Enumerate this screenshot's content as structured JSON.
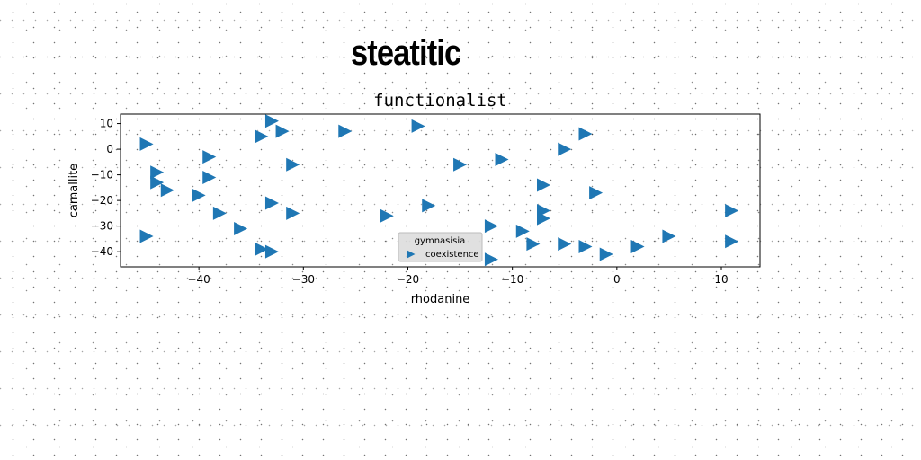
{
  "page": {
    "super_title": "steatitic"
  },
  "chart_data": {
    "type": "scatter",
    "title": "functionalist",
    "xlabel": "rhodanine",
    "ylabel": "carnallite",
    "xlim": [
      -47.5,
      13.7
    ],
    "ylim": [
      -45.9,
      13.7
    ],
    "xticks": [
      -40,
      -30,
      -20,
      -10,
      0,
      10
    ],
    "yticks": [
      -40,
      -30,
      -20,
      -10,
      0,
      10
    ],
    "grid": false,
    "legend": {
      "title": "gymnasisia",
      "placement": "lower-center"
    },
    "marker": "triangle-right",
    "series": [
      {
        "name": "coexistence",
        "color": "#1f77b4",
        "points": [
          [
            -33,
            11
          ],
          [
            -19,
            9
          ],
          [
            -26,
            7
          ],
          [
            -32,
            7
          ],
          [
            -34,
            5
          ],
          [
            -3,
            6
          ],
          [
            -45,
            2
          ],
          [
            -5,
            0
          ],
          [
            -39,
            -3
          ],
          [
            -11,
            -4
          ],
          [
            -31,
            -6
          ],
          [
            -15,
            -6
          ],
          [
            -44,
            -9
          ],
          [
            -39,
            -11
          ],
          [
            -44,
            -13
          ],
          [
            -7,
            -14
          ],
          [
            -43,
            -16
          ],
          [
            -2,
            -17
          ],
          [
            -40,
            -18
          ],
          [
            -33,
            -21
          ],
          [
            -18,
            -22
          ],
          [
            -7,
            -24
          ],
          [
            11,
            -24
          ],
          [
            -38,
            -25
          ],
          [
            -31,
            -25
          ],
          [
            -22,
            -26
          ],
          [
            -7,
            -27
          ],
          [
            -12,
            -30
          ],
          [
            -36,
            -31
          ],
          [
            -9,
            -32
          ],
          [
            -45,
            -34
          ],
          [
            5,
            -34
          ],
          [
            11,
            -36
          ],
          [
            -8,
            -37
          ],
          [
            -5,
            -37
          ],
          [
            -3,
            -38
          ],
          [
            2,
            -38
          ],
          [
            -34,
            -39
          ],
          [
            -33,
            -40
          ],
          [
            -1,
            -41
          ],
          [
            -12,
            -43
          ]
        ]
      }
    ]
  }
}
